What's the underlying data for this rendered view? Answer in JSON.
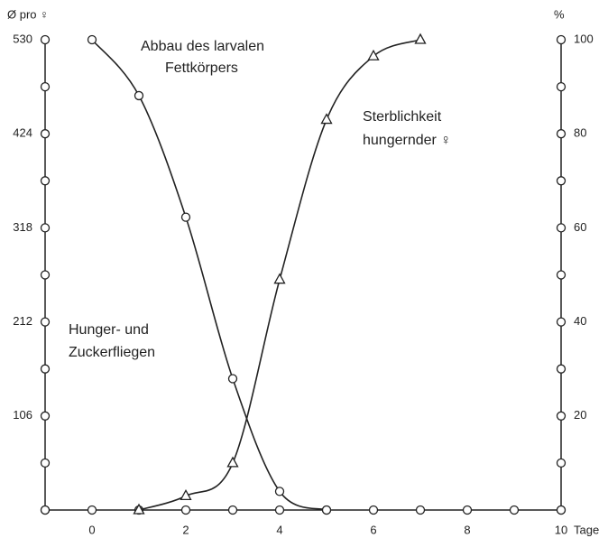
{
  "chart_data": {
    "type": "line",
    "ylabel": "Ø pro ♀",
    "y2label": "%",
    "xlabel": "Tage",
    "annotations": [
      [
        "Abbau des larvalen",
        "Fettkörpers"
      ],
      [
        "Sterblichkeit",
        "hungernder ♀"
      ],
      [
        "Hunger- und",
        "Zuckerfliegen"
      ]
    ],
    "series": [
      {
        "x": [
          0,
          1,
          2,
          3,
          4,
          5
        ],
        "values": [
          530,
          467,
          330,
          148,
          21,
          0
        ],
        "marker": "circle",
        "axis": "y"
      },
      {
        "x": [
          1,
          2,
          3,
          4,
          5,
          6,
          7
        ],
        "values": [
          0,
          3,
          10,
          49,
          83,
          96.5,
          100
        ],
        "marker": "triangle",
        "axis": "y2"
      }
    ],
    "xlim": [
      -1,
      10
    ],
    "xticks": [
      0,
      2,
      4,
      6,
      8,
      10
    ],
    "xminor": [
      -1,
      1,
      3,
      5,
      7,
      9
    ],
    "ylim": [
      0,
      530
    ],
    "yticks": [
      106,
      212,
      318,
      424,
      530
    ],
    "yminor": [
      0,
      53,
      159,
      265,
      371,
      477
    ],
    "y2lim": [
      0,
      100
    ],
    "y2ticks": [
      20,
      40,
      60,
      80,
      100
    ],
    "y2minor": [
      0,
      10,
      30,
      50,
      70,
      90
    ]
  }
}
